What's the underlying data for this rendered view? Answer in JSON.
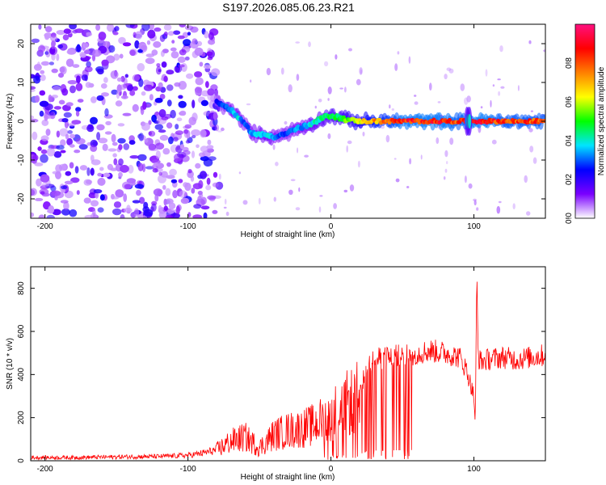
{
  "figure": {
    "title": "S197.2026.085.06.23.R21"
  },
  "chart_data": [
    {
      "type": "heatmap",
      "xlabel": "Height of straight line (km)",
      "ylabel": "Frequency (Hz)",
      "xlim": [
        -210,
        150
      ],
      "ylim": [
        -25,
        25
      ],
      "xticks": [
        -200,
        -100,
        0,
        100
      ],
      "yticks": [
        -20,
        -10,
        0,
        10,
        20
      ],
      "colorbar": {
        "label": "Normalized spectral amplitude",
        "ticks": [
          0.0,
          0.2,
          0.4,
          0.6,
          0.8
        ],
        "range": [
          0,
          1
        ],
        "colormap": [
          "#ffffff",
          "#7a00ff",
          "#0000ff",
          "#00e5ff",
          "#00ff00",
          "#ffff00",
          "#ff8000",
          "#ff0000",
          "#ff1080"
        ]
      },
      "ridge": {
        "description_values": "dominant frequency (Hz) vs height (km)",
        "x": [
          -80,
          -75,
          -70,
          -65,
          -60,
          -55,
          -50,
          -45,
          -40,
          -35,
          -30,
          -25,
          -20,
          -15,
          -10,
          -5,
          0,
          5,
          10,
          20,
          30,
          40,
          50,
          60,
          70,
          80,
          90,
          100,
          110,
          120,
          130,
          140,
          150
        ],
        "y": [
          5,
          4,
          3,
          1,
          -1,
          -3,
          -3.5,
          -3.5,
          -4,
          -3.5,
          -3,
          -2,
          -1.5,
          -1,
          0,
          1,
          1.5,
          1,
          0.5,
          0,
          0,
          0,
          0,
          0,
          0,
          0,
          0,
          0,
          0,
          0,
          0,
          0,
          0
        ],
        "amplitude": [
          0.25,
          0.3,
          0.35,
          0.4,
          0.3,
          0.35,
          0.4,
          0.4,
          0.35,
          0.3,
          0.3,
          0.35,
          0.35,
          0.4,
          0.45,
          0.45,
          0.5,
          0.5,
          0.55,
          0.65,
          0.75,
          0.8,
          0.9,
          0.9,
          0.9,
          0.9,
          0.85,
          0.9,
          0.9,
          0.85,
          0.85,
          0.85,
          0.85
        ]
      },
      "noise_region_x": [
        -210,
        -78
      ]
    },
    {
      "type": "line",
      "xlabel": "Height of straight line (km)",
      "ylabel": "SNR (10 * v/v)",
      "xlim": [
        -210,
        150
      ],
      "ylim": [
        0,
        900
      ],
      "xticks": [
        -200,
        -100,
        0,
        100
      ],
      "yticks": [
        0,
        200,
        400,
        600,
        800
      ],
      "series": [
        {
          "color": "#ff0000",
          "x": [
            -210,
            -180,
            -150,
            -120,
            -100,
            -90,
            -80,
            -70,
            -60,
            -50,
            -40,
            -30,
            -20,
            -10,
            0,
            5,
            10,
            15,
            20,
            25,
            30,
            40,
            50,
            60,
            70,
            80,
            90,
            95,
            100,
            101,
            102,
            103,
            105,
            110,
            120,
            130,
            140,
            150
          ],
          "y": [
            15,
            15,
            18,
            20,
            25,
            35,
            50,
            90,
            110,
            60,
            120,
            140,
            150,
            170,
            220,
            230,
            260,
            280,
            300,
            440,
            470,
            480,
            490,
            500,
            510,
            500,
            480,
            420,
            300,
            170,
            860,
            480,
            460,
            470,
            480,
            470,
            480,
            490
          ]
        }
      ]
    }
  ]
}
